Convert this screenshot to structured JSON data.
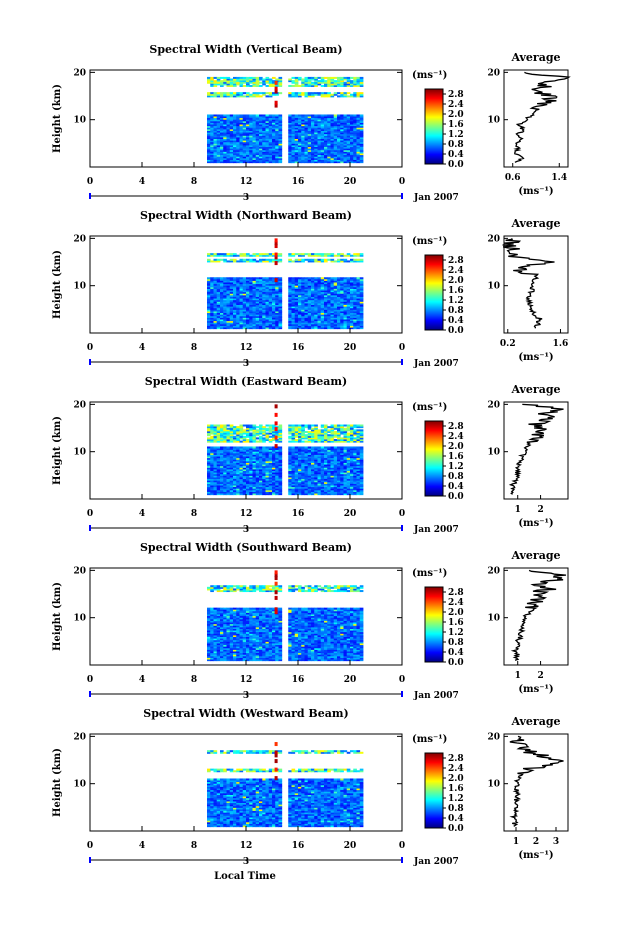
{
  "figure": {
    "x_label": "Local Time",
    "date_label": "Jan 2007",
    "y_label": "Height (km)",
    "unit_label": "(ms⁻¹)",
    "avg_unit_label": "(ms⁻¹)",
    "avg_title": "Average",
    "day_label": "3",
    "time_ticks": [
      "0",
      "4",
      "8",
      "12",
      "16",
      "20",
      "0"
    ],
    "colorbar_ticks": [
      "0.0",
      "0.4",
      "0.8",
      "1.2",
      "1.6",
      "2.0",
      "2.4",
      "2.8"
    ],
    "colorbar_range": [
      0,
      3.0
    ],
    "height_ticks": [
      "10",
      "20"
    ],
    "height_range_km": [
      0,
      20.5
    ]
  },
  "chart_data": [
    {
      "type": "heatmap",
      "title": "Spectral Width (Vertical Beam)",
      "xlabel": "Local Time",
      "ylabel": "Height (km)",
      "xlim": [
        0,
        24
      ],
      "ylim": [
        0,
        20.5
      ],
      "data_time_range": [
        9,
        21
      ],
      "data_gap_time": 15,
      "lower_layer_top_km": 11.0,
      "upper_layers_km": [
        [
          14.8,
          15.6
        ],
        [
          17.0,
          19.0
        ]
      ],
      "spike_time": 14.2,
      "colorbar_label": "(ms⁻¹)",
      "colorbar_ticks": [
        0.0,
        0.4,
        0.8,
        1.2,
        1.6,
        2.0,
        2.4,
        2.8
      ],
      "average_profile": {
        "title": "Average",
        "xlabel": "(ms⁻¹)",
        "xticks": [
          "0.6",
          "1.4"
        ],
        "xtick_values": [
          0.6,
          1.4
        ],
        "xlim": [
          0.45,
          1.55
        ],
        "yticks": [
          "10",
          "20"
        ],
        "heights": [
          1,
          2,
          3,
          4,
          5,
          6,
          7,
          8,
          9,
          10,
          11,
          12,
          13,
          14,
          15,
          16,
          17,
          18,
          19,
          20
        ],
        "values": [
          0.65,
          0.8,
          0.6,
          0.72,
          0.66,
          0.75,
          0.7,
          0.78,
          0.72,
          0.82,
          0.92,
          1.0,
          1.15,
          1.2,
          1.3,
          0.9,
          1.15,
          1.2,
          1.5,
          0.8
        ]
      }
    },
    {
      "type": "heatmap",
      "title": "Spectral Width (Northward Beam)",
      "xlabel": "Local Time",
      "ylabel": "Height (km)",
      "xlim": [
        0,
        24
      ],
      "ylim": [
        0,
        20.5
      ],
      "data_time_range": [
        9,
        21
      ],
      "data_gap_time": 15,
      "lower_layer_top_km": 11.5,
      "upper_layers_km": [
        [
          15.0,
          15.4
        ],
        [
          16.2,
          16.6
        ]
      ],
      "spike_time": 14.2,
      "colorbar_label": "(ms⁻¹)",
      "colorbar_ticks": [
        0.0,
        0.4,
        0.8,
        1.2,
        1.6,
        2.0,
        2.4,
        2.8
      ],
      "average_profile": {
        "title": "Average",
        "xlabel": "(ms⁻¹)",
        "xticks": [
          "0.2",
          "1.6"
        ],
        "xtick_values": [
          0.2,
          1.6
        ],
        "xlim": [
          0.1,
          1.8
        ],
        "yticks": [
          "10",
          "20"
        ],
        "heights": [
          1,
          2,
          3,
          4,
          5,
          6,
          7,
          8,
          9,
          10,
          11,
          12,
          13,
          14,
          15,
          16,
          17,
          18,
          19,
          20
        ],
        "values": [
          0.95,
          1.0,
          1.05,
          0.9,
          0.85,
          0.8,
          0.75,
          0.8,
          0.85,
          0.8,
          0.9,
          0.95,
          0.5,
          0.4,
          1.5,
          0.3,
          0.35,
          0.32,
          0.28,
          0.3
        ]
      }
    },
    {
      "type": "heatmap",
      "title": "Spectral Width (Eastward Beam)",
      "xlabel": "Local Time",
      "ylabel": "Height (km)",
      "xlim": [
        0,
        24
      ],
      "ylim": [
        0,
        20.5
      ],
      "data_time_range": [
        9,
        21
      ],
      "data_gap_time": 15,
      "lower_layer_top_km": 11.0,
      "upper_layers_km": [
        [
          12.0,
          15.5
        ]
      ],
      "spike_time": 14.2,
      "colorbar_label": "(ms⁻¹)",
      "colorbar_ticks": [
        0.0,
        0.4,
        0.8,
        1.2,
        1.6,
        2.0,
        2.4,
        2.8
      ],
      "average_profile": {
        "title": "Average",
        "xlabel": "(ms⁻¹)",
        "xticks": [
          "1",
          "2"
        ],
        "xtick_values": [
          1,
          2
        ],
        "xlim": [
          0.4,
          3.2
        ],
        "yticks": [
          "10",
          "20"
        ],
        "heights": [
          1,
          2,
          3,
          4,
          5,
          6,
          7,
          8,
          9,
          10,
          11,
          12,
          13,
          14,
          15,
          16,
          17,
          18,
          19,
          20
        ],
        "values": [
          0.8,
          0.85,
          0.8,
          0.9,
          1.0,
          0.95,
          1.05,
          1.1,
          1.2,
          1.3,
          1.4,
          1.5,
          1.7,
          1.9,
          2.0,
          1.8,
          2.4,
          2.2,
          3.0,
          1.2
        ]
      }
    },
    {
      "type": "heatmap",
      "title": "Spectral Width (Southward Beam)",
      "xlabel": "Local Time",
      "ylabel": "Height (km)",
      "xlim": [
        0,
        24
      ],
      "ylim": [
        0,
        20.5
      ],
      "data_time_range": [
        9,
        21
      ],
      "data_gap_time": 15,
      "lower_layer_top_km": 12.0,
      "upper_layers_km": [
        [
          15.5,
          16.8
        ]
      ],
      "spike_time": 14.2,
      "colorbar_label": "(ms⁻¹)",
      "colorbar_ticks": [
        0.0,
        0.4,
        0.8,
        1.2,
        1.6,
        2.0,
        2.4,
        2.8
      ],
      "average_profile": {
        "title": "Average",
        "xlabel": "(ms⁻¹)",
        "xticks": [
          "1",
          "2"
        ],
        "xtick_values": [
          1,
          2
        ],
        "xlim": [
          0.4,
          3.2
        ],
        "yticks": [
          "10",
          "20"
        ],
        "heights": [
          1,
          2,
          3,
          4,
          5,
          6,
          7,
          8,
          9,
          10,
          11,
          12,
          13,
          14,
          15,
          16,
          17,
          18,
          19,
          20
        ],
        "values": [
          0.9,
          1.0,
          0.9,
          1.05,
          1.0,
          1.1,
          1.15,
          1.2,
          1.3,
          1.25,
          1.5,
          1.7,
          1.6,
          2.0,
          1.7,
          2.3,
          2.0,
          2.6,
          2.8,
          1.5
        ]
      }
    },
    {
      "type": "heatmap",
      "title": "Spectral Width (Westward Beam)",
      "xlabel": "Local Time",
      "ylabel": "Height (km)",
      "xlim": [
        0,
        24
      ],
      "ylim": [
        0,
        20.5
      ],
      "data_time_range": [
        9,
        21
      ],
      "data_gap_time": 15,
      "lower_layer_top_km": 11.0,
      "upper_layers_km": [
        [
          12.5,
          12.9
        ],
        [
          16.4,
          17.0
        ]
      ],
      "spike_time": 14.2,
      "colorbar_label": "(ms⁻¹)",
      "colorbar_ticks": [
        0.0,
        0.4,
        0.8,
        1.2,
        1.6,
        2.0,
        2.4,
        2.8
      ],
      "average_profile": {
        "title": "Average",
        "xlabel": "(ms⁻¹)",
        "xticks": [
          "1",
          "2",
          "3"
        ],
        "xtick_values": [
          1,
          2,
          3
        ],
        "xlim": [
          0.4,
          3.6
        ],
        "yticks": [
          "10",
          "20"
        ],
        "heights": [
          1,
          2,
          3,
          4,
          5,
          6,
          7,
          8,
          9,
          10,
          11,
          12,
          13,
          14,
          15,
          16,
          17,
          18,
          19,
          20
        ],
        "values": [
          0.9,
          0.95,
          0.9,
          1.0,
          0.95,
          1.0,
          1.05,
          1.1,
          1.0,
          1.05,
          1.1,
          1.3,
          1.5,
          2.8,
          3.0,
          2.2,
          1.5,
          1.2,
          1.0,
          1.1
        ]
      }
    }
  ]
}
